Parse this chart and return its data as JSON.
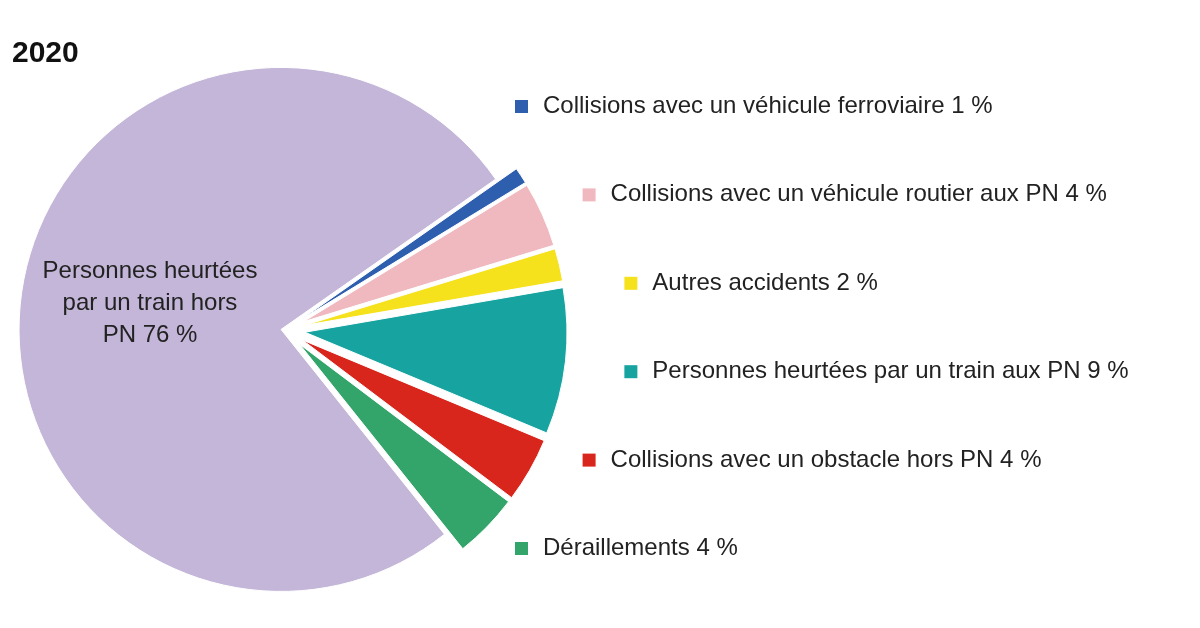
{
  "chart_data": {
    "type": "pie",
    "title": "2020",
    "legend": "right",
    "categories": [
      "Collisions avec un véhicule ferroviaire",
      "Collisions avec un véhicule routier aux PN",
      "Autres accidents",
      "Personnes heurtées par un train aux PN",
      "Collisions avec un obstacle hors PN",
      "Déraillements",
      "Personnes heurtées par un train hors PN"
    ],
    "values": [
      1,
      4,
      2,
      9,
      4,
      4,
      76
    ],
    "value_labels": [
      "1 %",
      "4 %",
      "2 %",
      "9 %",
      "4 %",
      "4 %",
      "76 %"
    ],
    "colors": [
      "#2e5fae",
      "#f0b8bf",
      "#f5e11c",
      "#17a3a0",
      "#d9261c",
      "#33a56a",
      "#c3b6d8"
    ]
  }
}
